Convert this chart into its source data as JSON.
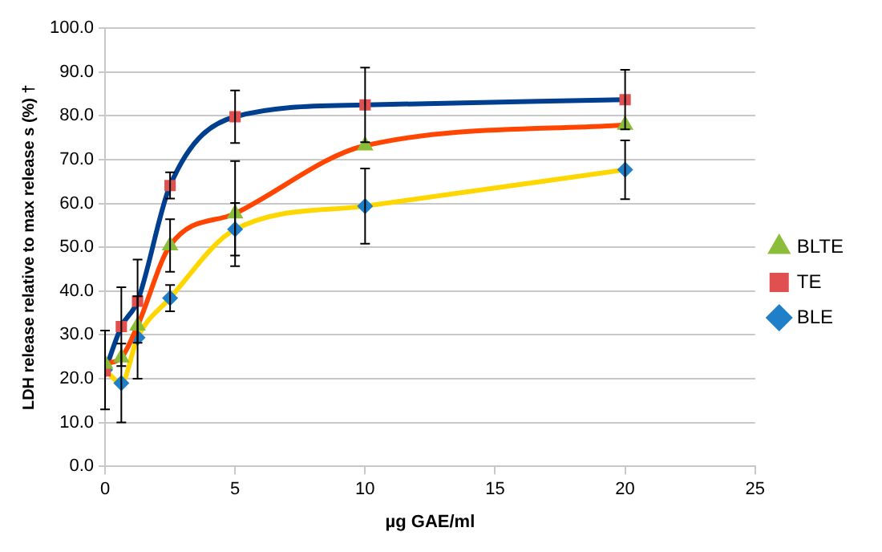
{
  "chart_data": {
    "type": "line",
    "x": [
      0,
      0.625,
      1.25,
      2.5,
      5,
      10,
      20
    ],
    "series": [
      {
        "name": "BLE",
        "color": "#ffd700",
        "marker": "diamond",
        "values": [
          22,
          19,
          29.4,
          38.4,
          54.1,
          59.4,
          67.7
        ],
        "errors": [
          9,
          9,
          9.4,
          3,
          6,
          8.6,
          6.7
        ]
      },
      {
        "name": "TE",
        "color": "#003f8f",
        "marker": "square",
        "values": [
          21.8,
          31.9,
          37.7,
          64.1,
          79.8,
          82.5,
          83.7
        ],
        "errors": [
          null,
          9,
          9.5,
          3,
          6,
          8.5,
          6.8
        ]
      },
      {
        "name": "BLTE",
        "color": "#ff4500",
        "marker": "triangle",
        "values": [
          23.4,
          24.8,
          32.1,
          50.4,
          57.7,
          73.2,
          77.9
        ],
        "errors": [
          null,
          null,
          null,
          6,
          12,
          null,
          null
        ]
      }
    ],
    "xlabel": "µg GAE/ml",
    "ylabel": "LDH release relative to max release s (%) †",
    "xlim": [
      0,
      25
    ],
    "xticks": [
      0,
      5,
      10,
      15,
      20,
      25
    ],
    "ylim": [
      0,
      100
    ],
    "yticks": [
      {
        "value": 0,
        "label": "0.0"
      },
      {
        "value": 10,
        "label": "10.0"
      },
      {
        "value": 20,
        "label": "20.0"
      },
      {
        "value": 30,
        "label": "30.0"
      },
      {
        "value": 40,
        "label": "40.0"
      },
      {
        "value": 50,
        "label": "50.0"
      },
      {
        "value": 60,
        "label": "60.0"
      },
      {
        "value": 70,
        "label": "70.0"
      },
      {
        "value": 80,
        "label": "80.0"
      },
      {
        "value": 90,
        "label": "90.0"
      },
      {
        "value": 100,
        "label": "100.0"
      }
    ],
    "grid": "y",
    "legend": "right"
  }
}
